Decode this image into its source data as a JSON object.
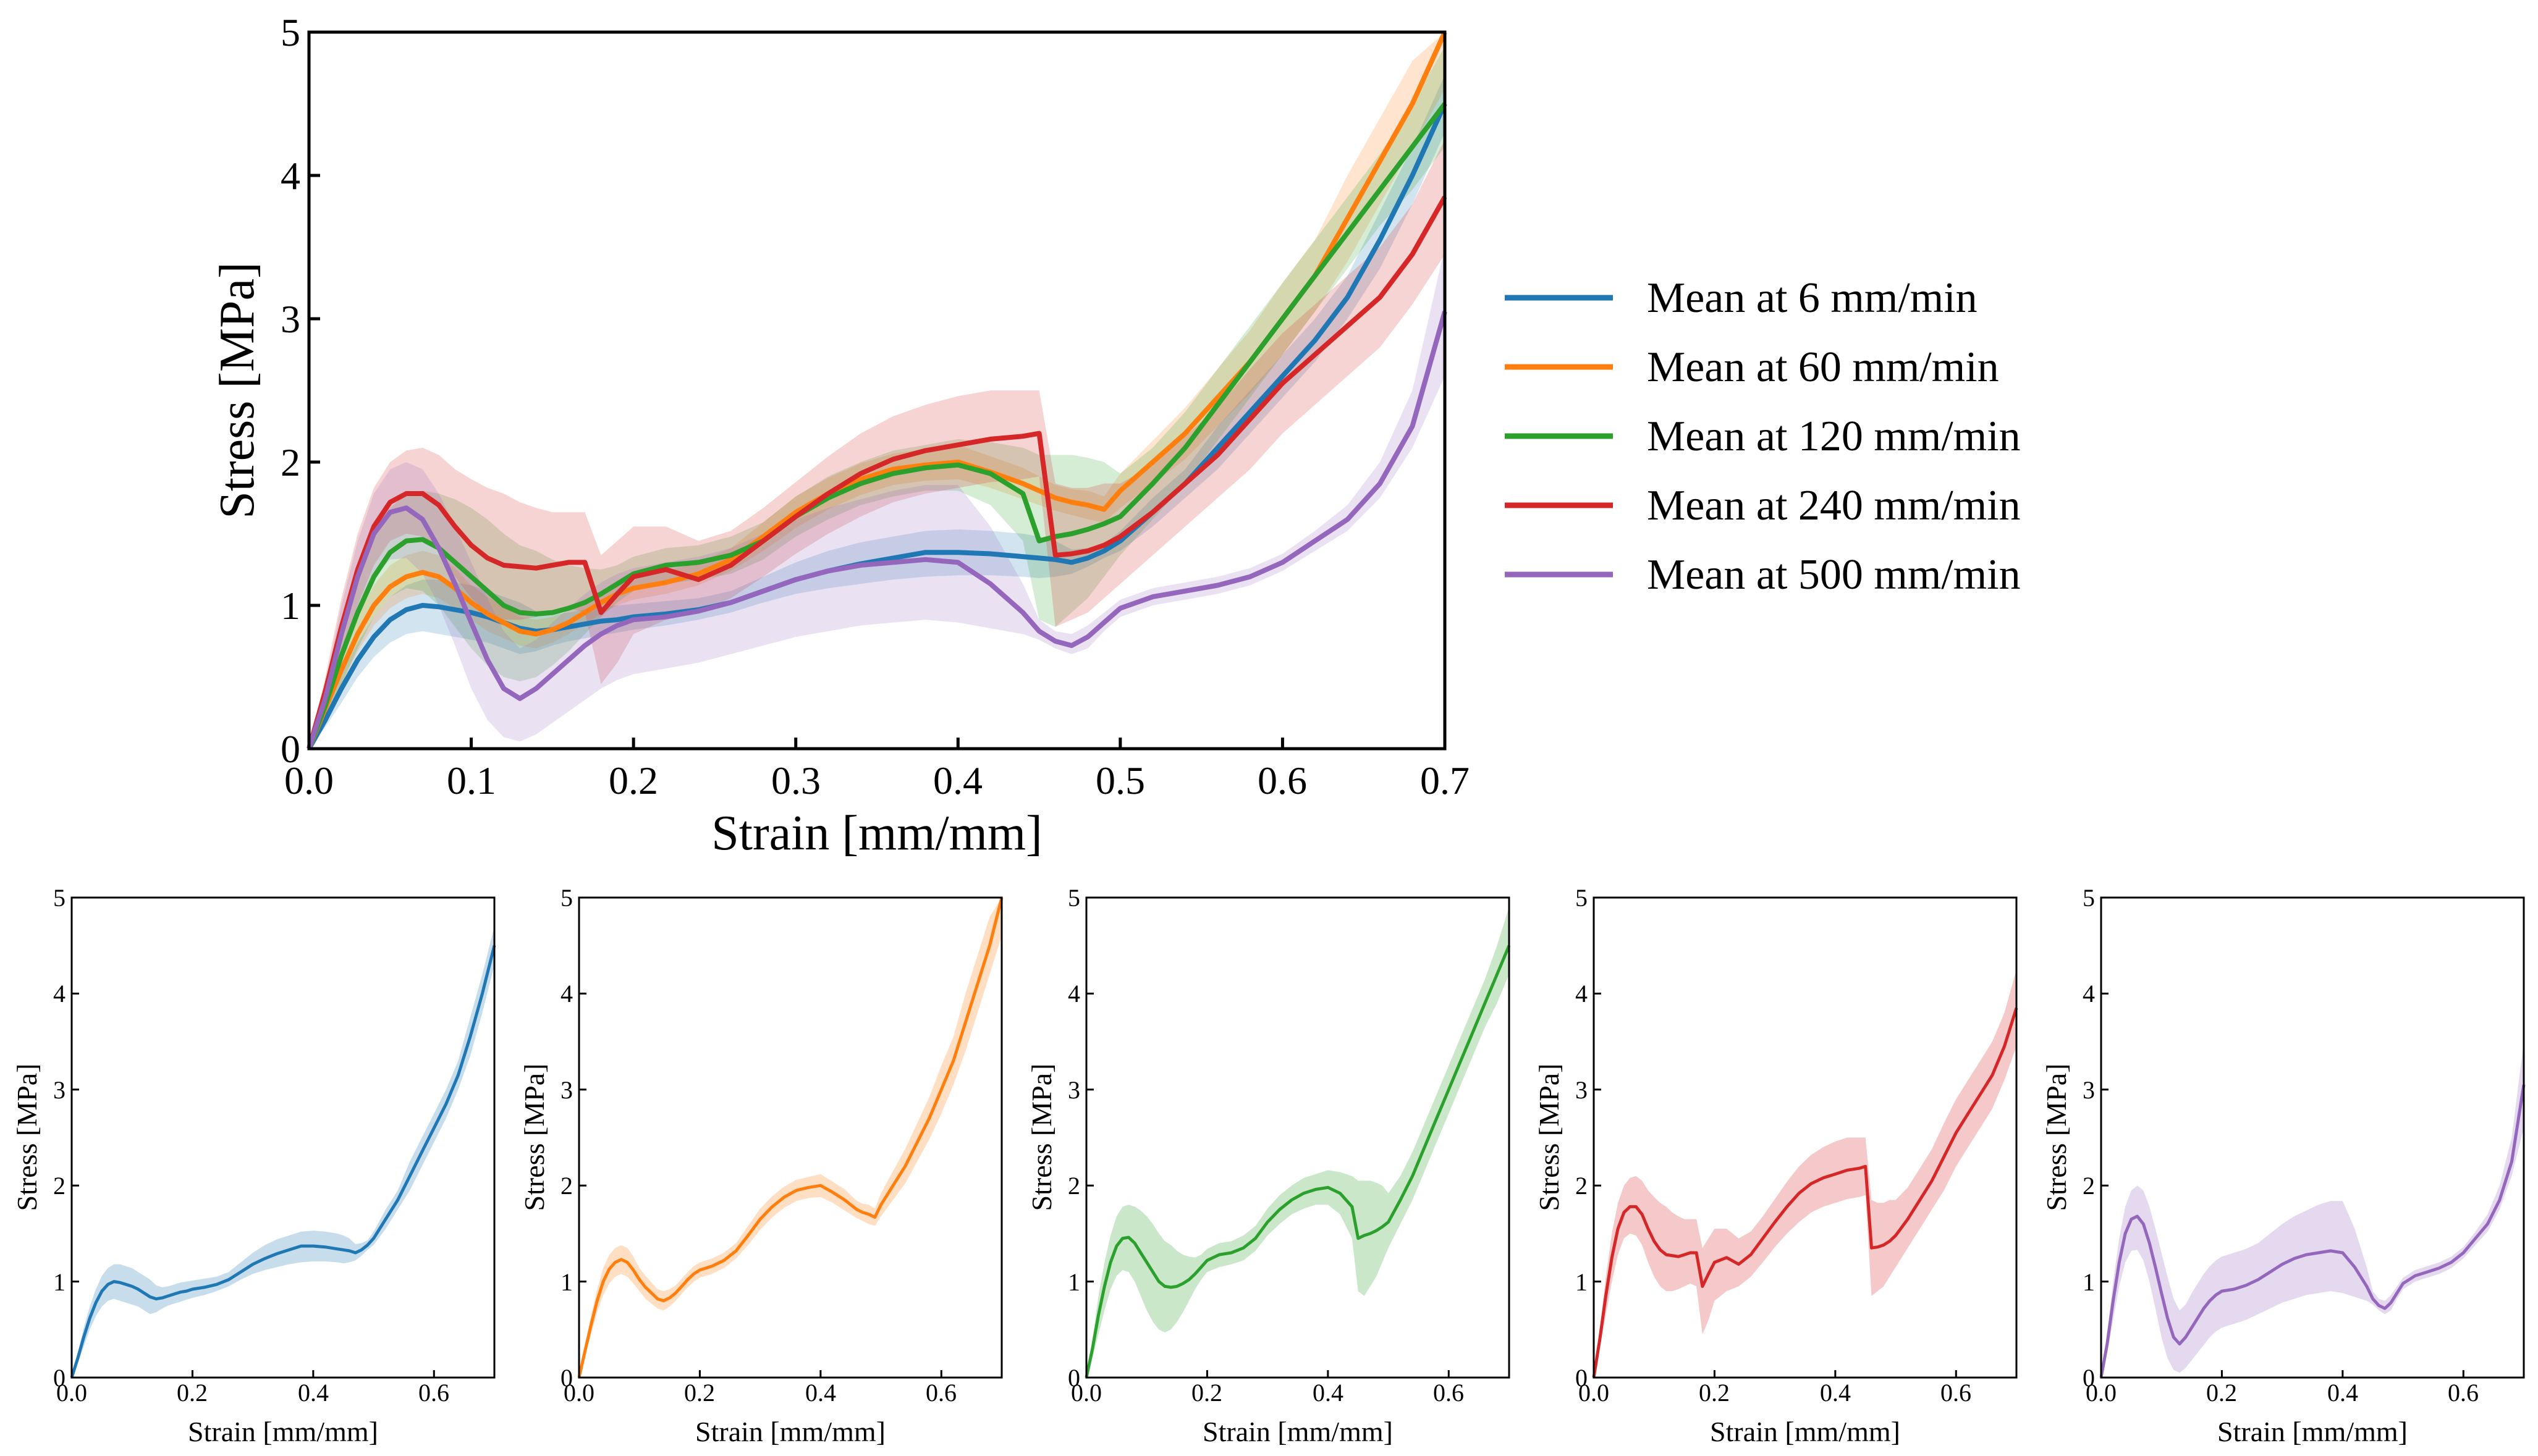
{
  "main_chart": {
    "type": "line",
    "xlabel": "Strain [mm/mm]",
    "ylabel": "Stress [MPa]",
    "xlim": [
      0,
      0.7
    ],
    "ylim": [
      0,
      5
    ],
    "xticks": [
      "0.0",
      "0.1",
      "0.2",
      "0.3",
      "0.4",
      "0.5",
      "0.6",
      "0.7"
    ],
    "yticks": [
      "0",
      "1",
      "2",
      "3",
      "4",
      "5"
    ]
  },
  "legend": {
    "position": "right",
    "items": [
      {
        "label": "Mean at 6 mm/min",
        "color": "#1f77b4"
      },
      {
        "label": "Mean at 60 mm/min",
        "color": "#ff7f0e"
      },
      {
        "label": "Mean at 120 mm/min",
        "color": "#2ca02c"
      },
      {
        "label": "Mean at 240 mm/min",
        "color": "#d62728"
      },
      {
        "label": "Mean at 500 mm/min",
        "color": "#9467bd"
      }
    ]
  },
  "small_charts": {
    "xlabel": "Strain [mm/mm]",
    "ylabel": "Stress [MPa]",
    "xlim": [
      0,
      0.7
    ],
    "ylim": [
      0,
      5
    ],
    "xticks": [
      "0.0",
      "0.2",
      "0.4",
      "0.6"
    ],
    "yticks": [
      "0",
      "1",
      "2",
      "3",
      "4",
      "5"
    ]
  },
  "chart_data": [
    {
      "type": "line",
      "title": "",
      "xlabel": "Strain [mm/mm]",
      "ylabel": "Stress [MPa]",
      "xlim": [
        0,
        0.7
      ],
      "ylim": [
        0,
        5
      ],
      "grid": false,
      "legend": "right",
      "x": [
        0,
        0.01,
        0.02,
        0.03,
        0.04,
        0.05,
        0.06,
        0.07,
        0.08,
        0.09,
        0.1,
        0.11,
        0.12,
        0.13,
        0.14,
        0.15,
        0.16,
        0.17,
        0.18,
        0.19,
        0.2,
        0.22,
        0.24,
        0.26,
        0.28,
        0.3,
        0.32,
        0.34,
        0.36,
        0.38,
        0.4,
        0.42,
        0.44,
        0.45,
        0.46,
        0.47,
        0.48,
        0.49,
        0.5,
        0.52,
        0.54,
        0.56,
        0.58,
        0.6,
        0.62,
        0.64,
        0.66,
        0.68,
        0.7
      ],
      "series": [
        {
          "name": "Mean at 6 mm/min",
          "color": "#1f77b4",
          "values": [
            0,
            0.2,
            0.42,
            0.62,
            0.78,
            0.9,
            0.97,
            1.0,
            0.99,
            0.97,
            0.95,
            0.92,
            0.88,
            0.84,
            0.82,
            0.83,
            0.85,
            0.87,
            0.89,
            0.9,
            0.92,
            0.94,
            0.97,
            1.02,
            1.1,
            1.18,
            1.24,
            1.29,
            1.33,
            1.37,
            1.37,
            1.36,
            1.34,
            1.33,
            1.32,
            1.3,
            1.33,
            1.38,
            1.45,
            1.65,
            1.85,
            2.1,
            2.35,
            2.6,
            2.85,
            3.15,
            3.55,
            4.0,
            4.5
          ],
          "lower": [
            0,
            0.15,
            0.32,
            0.5,
            0.64,
            0.74,
            0.8,
            0.82,
            0.8,
            0.78,
            0.76,
            0.74,
            0.7,
            0.66,
            0.68,
            0.72,
            0.75,
            0.77,
            0.79,
            0.81,
            0.83,
            0.86,
            0.9,
            0.95,
            1.02,
            1.08,
            1.12,
            1.15,
            1.18,
            1.2,
            1.21,
            1.21,
            1.2,
            1.19,
            1.2,
            1.22,
            1.27,
            1.33,
            1.38,
            1.55,
            1.75,
            1.95,
            2.2,
            2.45,
            2.7,
            3.0,
            3.35,
            3.8,
            4.3
          ],
          "upper": [
            0,
            0.25,
            0.52,
            0.74,
            0.92,
            1.06,
            1.14,
            1.18,
            1.18,
            1.16,
            1.14,
            1.1,
            1.06,
            1.02,
            0.96,
            0.94,
            0.95,
            0.97,
            0.99,
            1.0,
            1.01,
            1.03,
            1.05,
            1.1,
            1.2,
            1.3,
            1.38,
            1.44,
            1.48,
            1.52,
            1.53,
            1.52,
            1.5,
            1.48,
            1.45,
            1.39,
            1.4,
            1.43,
            1.52,
            1.75,
            1.95,
            2.25,
            2.5,
            2.75,
            3.0,
            3.3,
            3.75,
            4.2,
            4.7
          ]
        },
        {
          "name": "Mean at 60 mm/min",
          "color": "#ff7f0e",
          "values": [
            0,
            0.28,
            0.55,
            0.8,
            1.0,
            1.13,
            1.2,
            1.23,
            1.2,
            1.12,
            1.02,
            0.94,
            0.88,
            0.82,
            0.8,
            0.83,
            0.88,
            0.95,
            1.02,
            1.08,
            1.12,
            1.16,
            1.22,
            1.32,
            1.48,
            1.65,
            1.78,
            1.88,
            1.95,
            1.98,
            2.0,
            1.93,
            1.85,
            1.8,
            1.75,
            1.72,
            1.7,
            1.67,
            1.8,
            2.0,
            2.2,
            2.45,
            2.7,
            3.0,
            3.3,
            3.7,
            4.1,
            4.5,
            5.0
          ],
          "lower": [
            0,
            0.22,
            0.45,
            0.68,
            0.86,
            0.98,
            1.05,
            1.08,
            1.05,
            0.98,
            0.9,
            0.82,
            0.77,
            0.72,
            0.7,
            0.74,
            0.8,
            0.87,
            0.94,
            1.0,
            1.04,
            1.08,
            1.14,
            1.24,
            1.38,
            1.54,
            1.67,
            1.77,
            1.84,
            1.87,
            1.88,
            1.82,
            1.74,
            1.7,
            1.66,
            1.63,
            1.6,
            1.58,
            1.68,
            1.85,
            2.02,
            2.25,
            2.48,
            2.75,
            3.05,
            3.4,
            3.8,
            4.2,
            4.6
          ],
          "upper": [
            0,
            0.34,
            0.65,
            0.92,
            1.14,
            1.28,
            1.35,
            1.38,
            1.35,
            1.26,
            1.14,
            1.06,
            0.99,
            0.92,
            0.9,
            0.92,
            0.96,
            1.03,
            1.1,
            1.16,
            1.2,
            1.24,
            1.3,
            1.4,
            1.58,
            1.76,
            1.89,
            1.99,
            2.06,
            2.09,
            2.12,
            2.04,
            1.96,
            1.9,
            1.84,
            1.81,
            1.8,
            1.76,
            1.92,
            2.15,
            2.38,
            2.65,
            2.92,
            3.25,
            3.55,
            4.0,
            4.4,
            4.8,
            5.0
          ]
        },
        {
          "name": "Mean at 120 mm/min",
          "color": "#2ca02c",
          "values": [
            0,
            0.3,
            0.65,
            0.95,
            1.2,
            1.37,
            1.45,
            1.46,
            1.4,
            1.3,
            1.2,
            1.1,
            1.0,
            0.95,
            0.94,
            0.95,
            0.98,
            1.02,
            1.08,
            1.15,
            1.22,
            1.28,
            1.3,
            1.35,
            1.45,
            1.62,
            1.75,
            1.85,
            1.92,
            1.96,
            1.98,
            1.92,
            1.78,
            1.45,
            1.48,
            1.5,
            1.53,
            1.57,
            1.62,
            1.85,
            2.1,
            2.4,
            2.7,
            3.0,
            3.3,
            3.6,
            3.9,
            4.2,
            4.5
          ],
          "lower": [
            0,
            0.2,
            0.45,
            0.7,
            0.92,
            1.06,
            1.12,
            1.1,
            1.0,
            0.85,
            0.7,
            0.58,
            0.5,
            0.47,
            0.5,
            0.58,
            0.68,
            0.8,
            0.92,
            1.02,
            1.1,
            1.15,
            1.18,
            1.22,
            1.32,
            1.48,
            1.6,
            1.7,
            1.76,
            1.8,
            1.8,
            1.7,
            1.45,
            0.9,
            0.85,
            0.95,
            1.05,
            1.2,
            1.35,
            1.6,
            1.85,
            2.15,
            2.45,
            2.75,
            3.05,
            3.35,
            3.65,
            3.9,
            4.2
          ],
          "upper": [
            0,
            0.4,
            0.85,
            1.2,
            1.48,
            1.68,
            1.78,
            1.8,
            1.78,
            1.74,
            1.68,
            1.6,
            1.5,
            1.42,
            1.38,
            1.32,
            1.28,
            1.26,
            1.25,
            1.28,
            1.34,
            1.4,
            1.42,
            1.48,
            1.58,
            1.76,
            1.9,
            2.0,
            2.08,
            2.12,
            2.16,
            2.14,
            2.1,
            2.05,
            2.05,
            2.05,
            2.03,
            2.0,
            1.92,
            2.1,
            2.35,
            2.65,
            2.95,
            3.25,
            3.55,
            3.85,
            4.15,
            4.5,
            4.9
          ]
        },
        {
          "name": "Mean at 240 mm/min",
          "color": "#d62728",
          "values": [
            0,
            0.4,
            0.85,
            1.25,
            1.55,
            1.72,
            1.78,
            1.78,
            1.7,
            1.55,
            1.42,
            1.33,
            1.28,
            1.27,
            1.26,
            1.28,
            1.3,
            1.3,
            0.95,
            1.08,
            1.2,
            1.25,
            1.18,
            1.28,
            1.45,
            1.62,
            1.78,
            1.92,
            2.02,
            2.08,
            2.12,
            2.16,
            2.18,
            2.2,
            1.35,
            1.36,
            1.38,
            1.42,
            1.48,
            1.65,
            1.85,
            2.05,
            2.3,
            2.55,
            2.75,
            2.95,
            3.15,
            3.45,
            3.85
          ],
          "lower": [
            0,
            0.3,
            0.65,
            1.0,
            1.28,
            1.45,
            1.5,
            1.48,
            1.38,
            1.2,
            1.05,
            0.95,
            0.9,
            0.9,
            0.92,
            0.95,
            0.98,
            0.95,
            0.45,
            0.6,
            0.8,
            0.9,
            0.95,
            1.05,
            1.2,
            1.36,
            1.5,
            1.62,
            1.72,
            1.78,
            1.82,
            1.86,
            1.88,
            1.9,
            0.85,
            0.9,
            0.95,
            1.05,
            1.15,
            1.35,
            1.55,
            1.75,
            1.95,
            2.2,
            2.4,
            2.6,
            2.8,
            3.1,
            3.45
          ],
          "upper": [
            0,
            0.5,
            1.05,
            1.5,
            1.82,
            2.0,
            2.08,
            2.1,
            2.05,
            1.95,
            1.88,
            1.82,
            1.78,
            1.72,
            1.68,
            1.65,
            1.65,
            1.65,
            1.35,
            1.45,
            1.55,
            1.55,
            1.45,
            1.52,
            1.68,
            1.86,
            2.04,
            2.2,
            2.32,
            2.4,
            2.46,
            2.5,
            2.5,
            2.5,
            1.85,
            1.82,
            1.82,
            1.85,
            1.85,
            1.98,
            2.18,
            2.38,
            2.65,
            2.9,
            3.1,
            3.3,
            3.5,
            3.8,
            4.25
          ]
        },
        {
          "name": "Mean at 500 mm/min",
          "color": "#9467bd",
          "values": [
            0,
            0.35,
            0.8,
            1.2,
            1.5,
            1.65,
            1.68,
            1.6,
            1.4,
            1.15,
            0.88,
            0.62,
            0.42,
            0.35,
            0.42,
            0.52,
            0.62,
            0.72,
            0.8,
            0.86,
            0.9,
            0.92,
            0.96,
            1.02,
            1.1,
            1.18,
            1.24,
            1.28,
            1.3,
            1.32,
            1.3,
            1.15,
            0.95,
            0.82,
            0.75,
            0.72,
            0.78,
            0.88,
            0.98,
            1.06,
            1.1,
            1.14,
            1.2,
            1.3,
            1.45,
            1.6,
            1.85,
            2.25,
            3.05
          ],
          "lower": [
            0,
            0.25,
            0.6,
            0.95,
            1.2,
            1.32,
            1.33,
            1.22,
            1.0,
            0.72,
            0.42,
            0.2,
            0.08,
            0.05,
            0.1,
            0.18,
            0.26,
            0.34,
            0.42,
            0.48,
            0.52,
            0.56,
            0.6,
            0.66,
            0.72,
            0.78,
            0.82,
            0.86,
            0.88,
            0.9,
            0.88,
            0.84,
            0.8,
            0.76,
            0.7,
            0.66,
            0.7,
            0.82,
            0.92,
            1.0,
            1.04,
            1.08,
            1.14,
            1.24,
            1.38,
            1.52,
            1.75,
            2.1,
            2.6
          ],
          "upper": [
            0,
            0.45,
            1.0,
            1.45,
            1.78,
            1.95,
            2.0,
            1.95,
            1.78,
            1.55,
            1.3,
            1.05,
            0.82,
            0.7,
            0.76,
            0.88,
            0.98,
            1.08,
            1.16,
            1.22,
            1.26,
            1.3,
            1.34,
            1.4,
            1.5,
            1.6,
            1.68,
            1.74,
            1.8,
            1.84,
            1.84,
            1.55,
            1.15,
            0.9,
            0.82,
            0.8,
            0.86,
            0.95,
            1.04,
            1.12,
            1.16,
            1.2,
            1.26,
            1.36,
            1.52,
            1.7,
            2.0,
            2.5,
            3.5
          ]
        }
      ]
    }
  ]
}
